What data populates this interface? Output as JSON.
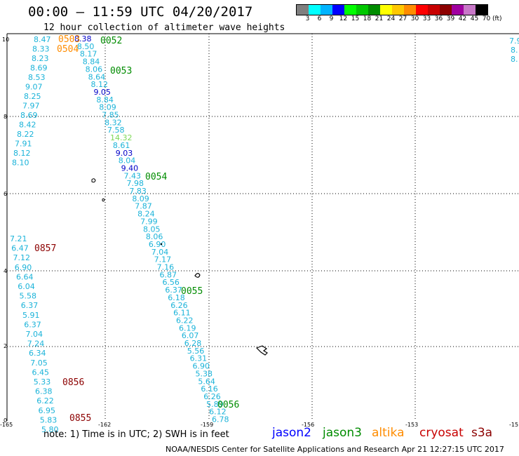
{
  "header": {
    "title": "00:00 — 11:59 UTC 04/20/2017",
    "subtitle": "12 hour collection of altimeter wave heights"
  },
  "colorbar": {
    "colors": [
      "#7f7f7f",
      "#00ffff",
      "#00b4ff",
      "#0000ff",
      "#00ff00",
      "#00c800",
      "#008c00",
      "#ffff00",
      "#ffc800",
      "#ff8c00",
      "#ff0000",
      "#c80000",
      "#8c0000",
      "#a000a0",
      "#c878c8",
      "#000000"
    ],
    "labels": [
      "3",
      "6",
      "9",
      "12",
      "15",
      "18",
      "21",
      "24",
      "27",
      "30",
      "33",
      "36",
      "39",
      "42",
      "45",
      "70"
    ],
    "unit": "(ft)"
  },
  "axes": {
    "x_ticks": [
      "-165",
      "-162",
      "-159",
      "-156",
      "-153",
      "-15"
    ],
    "y_ticks": [
      "10",
      "8",
      "6",
      "4",
      "2",
      "0"
    ]
  },
  "time_labels": [
    {
      "text": "0503",
      "sat": "altika"
    },
    {
      "text": "0504",
      "sat": "altika"
    },
    {
      "text": "0052",
      "sat": "jason3"
    },
    {
      "text": "0053",
      "sat": "jason3"
    },
    {
      "text": "0054",
      "sat": "jason3"
    },
    {
      "text": "0055",
      "sat": "jason3"
    },
    {
      "text": "0056",
      "sat": "jason3"
    },
    {
      "text": "0857",
      "sat": "cryosat"
    },
    {
      "text": "0856",
      "sat": "cryosat"
    },
    {
      "text": "0855",
      "sat": "cryosat"
    }
  ],
  "track_main": [
    "8.47",
    "8.33",
    "8.23",
    "8.69",
    "8.53",
    "9.07",
    "8.25",
    "7.97",
    "8.69",
    "8.42",
    "8.22",
    "7.91",
    "8.12",
    "8.10"
  ],
  "track_diag": [
    "8.38",
    "8.50",
    "8.17",
    "8.84",
    "8.06",
    "8.64",
    "8.12",
    "9.05",
    "8.84",
    "8.09",
    "7.85",
    "8.32",
    "7.58",
    "14.32",
    "8.61",
    "9.03",
    "8.04",
    "9.40",
    "7.43",
    "7.98",
    "7.83",
    "8.09",
    "7.87",
    "8.24",
    "7.99",
    "8.05",
    "8.06",
    "6.90",
    "7.04",
    "7.17",
    "7.16",
    "6.87",
    "6.56",
    "6.37",
    "6.18",
    "6.26",
    "6.11",
    "6.22",
    "6.19",
    "6.07",
    "6.28",
    "5.56",
    "6.31",
    "6.90",
    "5.38",
    "5.64",
    "6.16",
    "6.26",
    "5.89",
    "6.12",
    "6.78"
  ],
  "track_cryo": [
    "7.21",
    "6.47",
    "7.12",
    "6.90",
    "6.64",
    "6.04",
    "5.58",
    "6.37",
    "5.91",
    "6.37",
    "7.04",
    "7.24",
    "6.34",
    "7.05",
    "6.45",
    "5.33",
    "6.38",
    "6.22",
    "6.95",
    "5.83",
    "5.80"
  ],
  "track_right": [
    "7.9",
    "8.",
    "8."
  ],
  "legend": {
    "note": "note:  1) Time is in UTC;  2) SWH is in feet",
    "sats": [
      {
        "name": "jason2",
        "color": "#0000ff"
      },
      {
        "name": "jason3",
        "color": "#008c00"
      },
      {
        "name": "altika",
        "color": "#ff8c00"
      },
      {
        "name": "cryosat",
        "color": "#c80000"
      },
      {
        "name": "s3a",
        "color": "#8c0000"
      }
    ]
  },
  "footer": {
    "credit": "NOAA/NESDIS Center for Satellite Applications and Research    Apr 21 12:27:15 UTC 2017"
  },
  "colors": {
    "swh": "#1bb3d9",
    "jason3": "#008c00",
    "altika": "#ff8c00",
    "cryosat": "#8c0000",
    "jason2": "#0000c8",
    "green_hi": "#7ed957"
  }
}
